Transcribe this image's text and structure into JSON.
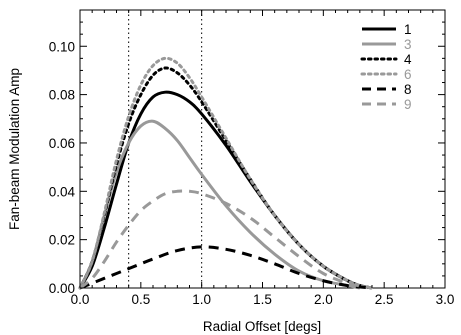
{
  "chart_data": {
    "type": "line",
    "title": "",
    "xlabel": "Radial Offset [degs]",
    "ylabel": "Fan-beam Modulation Amp",
    "xlim": [
      0.0,
      3.0
    ],
    "ylim": [
      0.0,
      0.115
    ],
    "xticks": [
      "0.0",
      "0.5",
      "1.0",
      "1.5",
      "2.0",
      "2.5",
      "3.0"
    ],
    "yticks": [
      "0.00",
      "0.02",
      "0.04",
      "0.06",
      "0.08",
      "0.10"
    ],
    "vlines": [
      0.4,
      1.0
    ],
    "legend_position": "top-right",
    "grid": false,
    "series": [
      {
        "name": "1",
        "color": "#000000",
        "style": "solid",
        "x": [
          0.0,
          0.1,
          0.2,
          0.3,
          0.4,
          0.5,
          0.6,
          0.7,
          0.8,
          0.9,
          1.0,
          1.2,
          1.4,
          1.6,
          1.8,
          2.0,
          2.2,
          2.3,
          2.4
        ],
        "y": [
          0.0,
          0.009,
          0.025,
          0.043,
          0.06,
          0.072,
          0.079,
          0.081,
          0.08,
          0.077,
          0.072,
          0.059,
          0.044,
          0.03,
          0.018,
          0.009,
          0.003,
          0.001,
          0.0
        ]
      },
      {
        "name": "3",
        "color": "#999999",
        "style": "solid",
        "x": [
          0.0,
          0.1,
          0.2,
          0.3,
          0.4,
          0.5,
          0.6,
          0.7,
          0.8,
          0.9,
          1.0,
          1.2,
          1.4,
          1.6,
          1.8,
          2.0,
          2.2,
          2.3
        ],
        "y": [
          0.0,
          0.011,
          0.03,
          0.048,
          0.06,
          0.067,
          0.069,
          0.066,
          0.061,
          0.054,
          0.047,
          0.034,
          0.023,
          0.014,
          0.007,
          0.003,
          0.001,
          0.0
        ]
      },
      {
        "name": "4",
        "color": "#000000",
        "style": "dotted",
        "x": [
          0.0,
          0.1,
          0.2,
          0.3,
          0.4,
          0.5,
          0.6,
          0.7,
          0.8,
          0.9,
          1.0,
          1.2,
          1.4,
          1.6,
          1.8,
          2.0,
          2.2,
          2.3,
          2.4
        ],
        "y": [
          0.0,
          0.011,
          0.03,
          0.051,
          0.068,
          0.08,
          0.088,
          0.091,
          0.089,
          0.084,
          0.077,
          0.061,
          0.045,
          0.03,
          0.018,
          0.009,
          0.003,
          0.001,
          0.0
        ]
      },
      {
        "name": "6",
        "color": "#999999",
        "style": "dotted",
        "x": [
          0.0,
          0.1,
          0.2,
          0.3,
          0.4,
          0.5,
          0.6,
          0.7,
          0.8,
          0.9,
          1.0,
          1.2,
          1.4,
          1.6,
          1.8,
          2.0,
          2.2,
          2.3,
          2.4
        ],
        "y": [
          0.0,
          0.011,
          0.031,
          0.053,
          0.071,
          0.084,
          0.092,
          0.095,
          0.093,
          0.087,
          0.079,
          0.062,
          0.045,
          0.03,
          0.018,
          0.009,
          0.003,
          0.001,
          0.0
        ]
      },
      {
        "name": "8",
        "color": "#000000",
        "style": "dashed",
        "x": [
          0.0,
          0.2,
          0.4,
          0.6,
          0.8,
          1.0,
          1.2,
          1.4,
          1.6,
          1.8,
          2.0,
          2.2,
          2.4
        ],
        "y": [
          0.0,
          0.004,
          0.008,
          0.012,
          0.0155,
          0.017,
          0.016,
          0.0135,
          0.01,
          0.006,
          0.003,
          0.001,
          0.0
        ]
      },
      {
        "name": "9",
        "color": "#999999",
        "style": "dashed",
        "x": [
          0.0,
          0.1,
          0.2,
          0.3,
          0.4,
          0.5,
          0.6,
          0.7,
          0.8,
          0.9,
          1.0,
          1.2,
          1.4,
          1.6,
          1.8,
          2.0,
          2.2,
          2.4
        ],
        "y": [
          0.0,
          0.004,
          0.011,
          0.019,
          0.026,
          0.032,
          0.036,
          0.039,
          0.04,
          0.04,
          0.039,
          0.035,
          0.029,
          0.021,
          0.013,
          0.006,
          0.002,
          0.0
        ]
      }
    ]
  }
}
